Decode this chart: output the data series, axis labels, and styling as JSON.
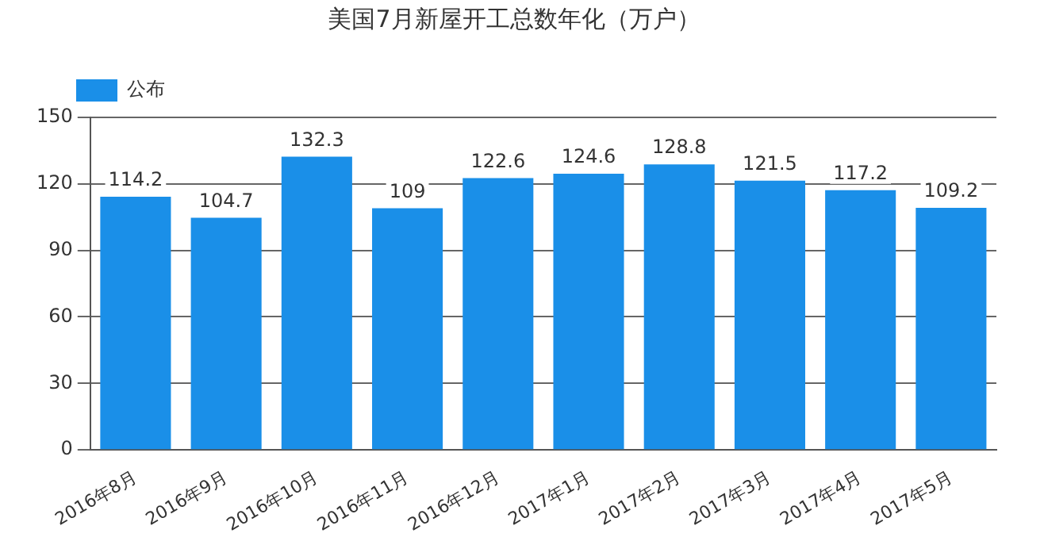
{
  "chart_data": {
    "type": "bar",
    "title": "美国7月新屋开工总数年化（万户）",
    "categories": [
      "2016年8月",
      "2016年9月",
      "2016年10月",
      "2016年11月",
      "2016年12月",
      "2017年1月",
      "2017年2月",
      "2017年3月",
      "2017年4月",
      "2017年5月"
    ],
    "series": [
      {
        "name": "公布",
        "color": "#1a8fe8",
        "values": [
          114.2,
          104.7,
          132.3,
          109,
          122.6,
          124.6,
          128.8,
          121.5,
          117.2,
          109.2
        ]
      }
    ],
    "ylim": [
      0,
      150
    ],
    "yticks": [
      0,
      30,
      60,
      90,
      120,
      150
    ],
    "grid": "y",
    "legend": "top left",
    "data_labels": true
  }
}
